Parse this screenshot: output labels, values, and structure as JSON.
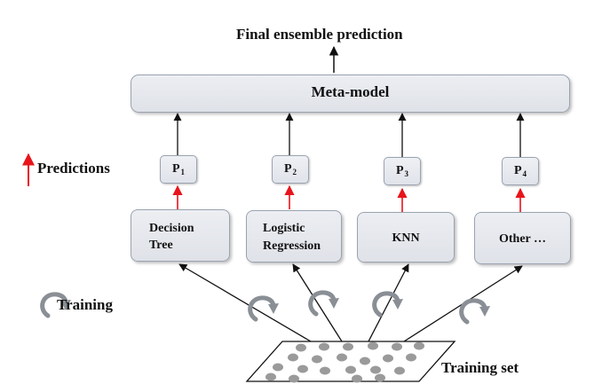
{
  "diagram": {
    "final_prediction_label": "Final ensemble prediction",
    "meta_model_label": "Meta-model",
    "predictions_legend_label": "Predictions",
    "training_legend_label": "Training",
    "training_set_label": "Training set",
    "predictions": [
      {
        "letter": "P",
        "index": "1"
      },
      {
        "letter": "P",
        "index": "2"
      },
      {
        "letter": "P",
        "index": "3"
      },
      {
        "letter": "P",
        "index": "4"
      }
    ],
    "base_models": [
      {
        "line1": "Decision",
        "line2": "Tree"
      },
      {
        "line1": "Logistic",
        "line2": "Regression"
      },
      {
        "line1": "KNN",
        "line2": ""
      },
      {
        "line1": "Other …",
        "line2": ""
      }
    ],
    "colors": {
      "prediction_arrow": "#e8141b",
      "flow_arrow": "#111111",
      "box_fill": "#e4e7ec",
      "box_border": "#9aa3b0",
      "training_icon": "#8a8f96",
      "data_point": "#9a9a9a"
    }
  }
}
